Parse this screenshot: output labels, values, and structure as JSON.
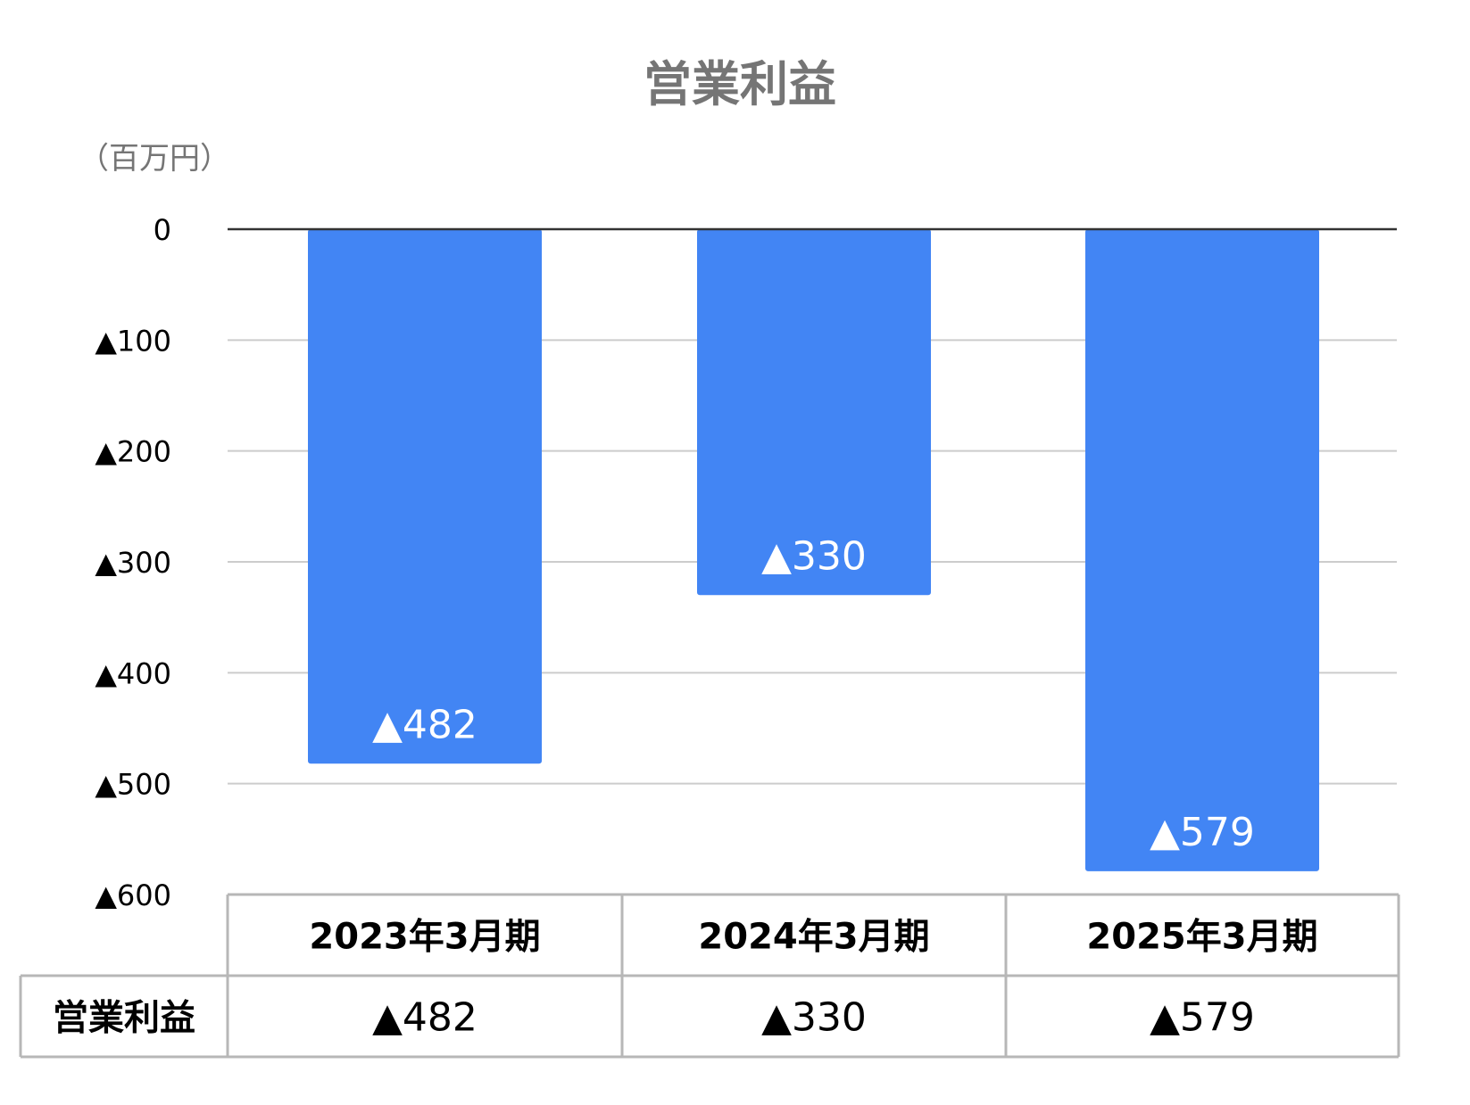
{
  "chart_data": {
    "type": "bar",
    "title": "営業利益",
    "unit_label": "（百万円）",
    "categories": [
      "2023年3月期",
      "2024年3月期",
      "2025年3月期"
    ],
    "series": [
      {
        "name": "営業利益",
        "values": [
          -482,
          -330,
          -579
        ],
        "value_labels": [
          "▲482",
          "▲330",
          "▲579"
        ],
        "color": "#4285f4"
      }
    ],
    "ylim": [
      -600,
      0
    ],
    "y_ticks": [
      0,
      -100,
      -200,
      -300,
      -400,
      -500,
      -600
    ],
    "y_tick_labels": [
      "0",
      "▲100",
      "▲200",
      "▲300",
      "▲400",
      "▲500",
      "▲600"
    ],
    "grid": true,
    "data_table": {
      "row_header": "営業利益",
      "cells": [
        "▲482",
        "▲330",
        "▲579"
      ]
    },
    "colors": {
      "bar": "#4285f4",
      "bar_label": "#ffffff",
      "title": "#757575",
      "unit": "#757575",
      "grid": "#cccccc",
      "zero_line": "#333333",
      "table_border": "#b7b7b7",
      "text": "#000000"
    }
  }
}
